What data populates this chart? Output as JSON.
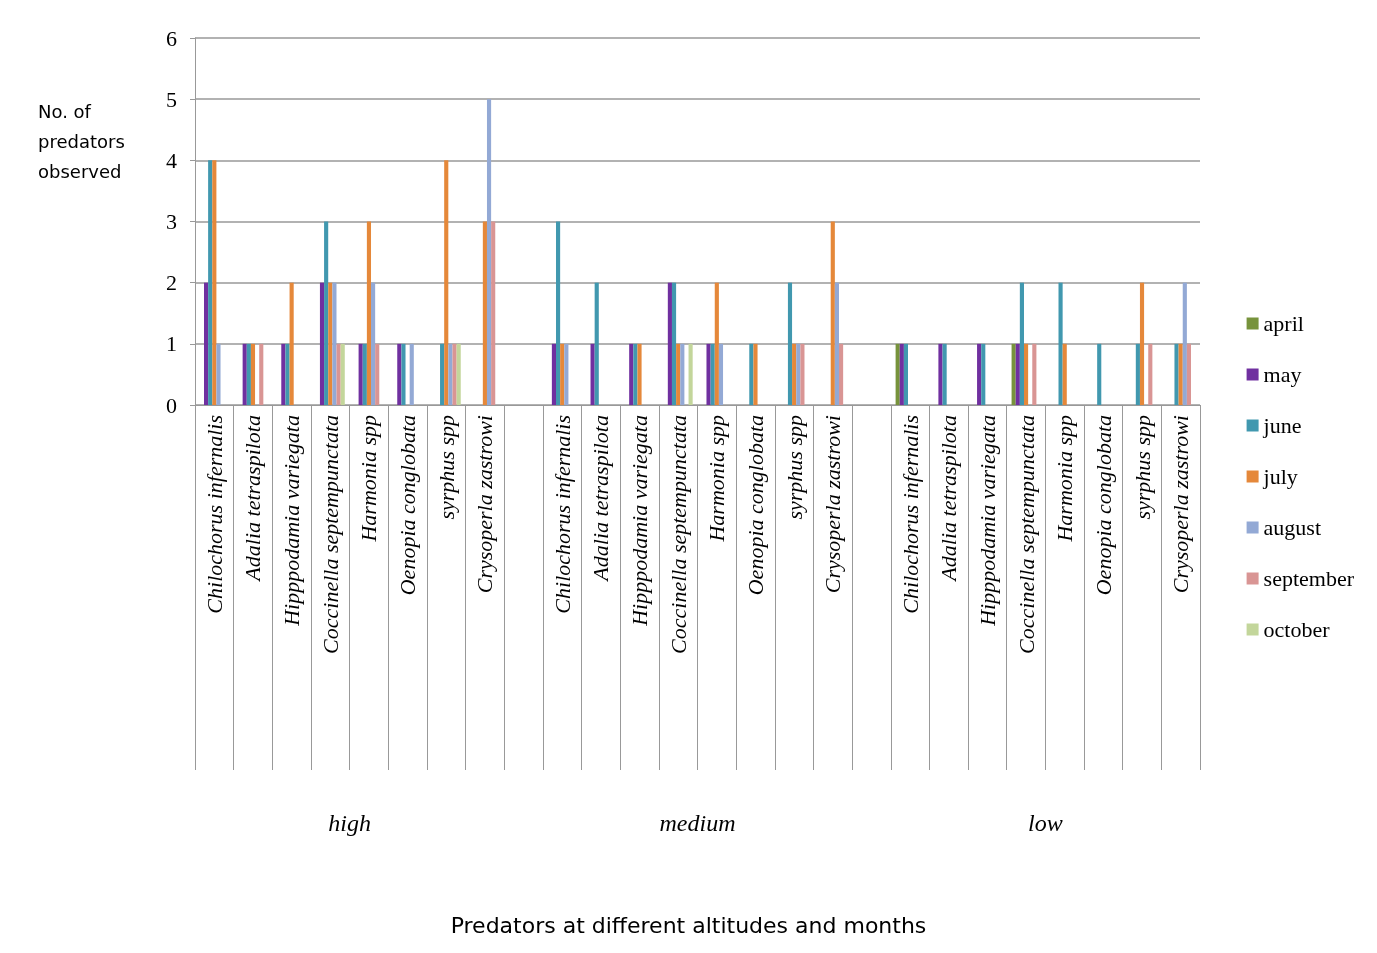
{
  "chart_data": {
    "type": "bar",
    "title": "Predators at different altitudes and months",
    "ylabel": "No. of\npredators\nobserved",
    "categories": [
      "Chilochorus infernalis",
      "Adalia tetraspilota",
      "Hipppodamia variegata",
      "Coccinella septempunctata",
      "Harmonia spp",
      "Oenopia conglobata",
      "syrphus spp",
      "Crysoperla zastrowi",
      null,
      "Chilochorus infernalis",
      "Adalia tetraspilota",
      "Hipppodamia variegata",
      "Coccinella septempunctata",
      "Harmonia spp",
      "Oenopia conglobata",
      "syrphus spp",
      "Crysoperla zastrowi",
      null,
      "Chilochorus infernalis",
      "Adalia tetraspilota",
      "Hipppodamia variegata",
      "Coccinella septempunctata",
      "Harmonia spp",
      "Oenopia conglobata",
      "syrphus spp",
      "Crysoperla zastrowi"
    ],
    "series": [
      {
        "name": "april",
        "color": "#77933c",
        "values": [
          null,
          null,
          null,
          null,
          null,
          null,
          null,
          null,
          null,
          null,
          null,
          null,
          null,
          null,
          null,
          null,
          null,
          null,
          1,
          null,
          null,
          1,
          null,
          null,
          null,
          null
        ]
      },
      {
        "name": "may",
        "color": "#7030a0",
        "values": [
          2,
          1,
          1,
          2,
          1,
          1,
          null,
          null,
          null,
          1,
          1,
          1,
          2,
          1,
          null,
          null,
          null,
          null,
          1,
          1,
          1,
          1,
          null,
          null,
          null,
          null
        ]
      },
      {
        "name": "june",
        "color": "#4198af",
        "values": [
          4,
          1,
          1,
          3,
          1,
          1,
          1,
          null,
          null,
          3,
          2,
          1,
          2,
          1,
          1,
          2,
          null,
          null,
          1,
          1,
          1,
          2,
          2,
          1,
          1,
          1
        ]
      },
      {
        "name": "july",
        "color": "#e5883a",
        "values": [
          4,
          1,
          2,
          2,
          3,
          null,
          4,
          3,
          null,
          1,
          null,
          1,
          1,
          2,
          1,
          1,
          3,
          null,
          null,
          null,
          null,
          1,
          1,
          null,
          2,
          1
        ]
      },
      {
        "name": "august",
        "color": "#93a9d5",
        "values": [
          1,
          null,
          null,
          2,
          2,
          1,
          1,
          5,
          null,
          1,
          null,
          null,
          1,
          1,
          null,
          1,
          2,
          null,
          null,
          null,
          null,
          null,
          null,
          null,
          null,
          2
        ]
      },
      {
        "name": "september",
        "color": "#d99594",
        "values": [
          null,
          1,
          null,
          1,
          1,
          null,
          1,
          3,
          null,
          null,
          null,
          null,
          null,
          null,
          null,
          1,
          1,
          null,
          null,
          null,
          null,
          1,
          null,
          null,
          1,
          1
        ]
      },
      {
        "name": "october",
        "color": "#c3d69b",
        "values": [
          null,
          null,
          null,
          1,
          null,
          null,
          1,
          null,
          null,
          null,
          null,
          null,
          1,
          null,
          null,
          null,
          null,
          null,
          null,
          null,
          null,
          null,
          null,
          null,
          null,
          null
        ]
      }
    ],
    "ylim": [
      0,
      6
    ],
    "yticks": [
      0,
      1,
      2,
      3,
      4,
      5,
      6
    ],
    "grid": "y",
    "legend": "right",
    "annotations": [
      "high",
      "medium",
      "low"
    ]
  }
}
